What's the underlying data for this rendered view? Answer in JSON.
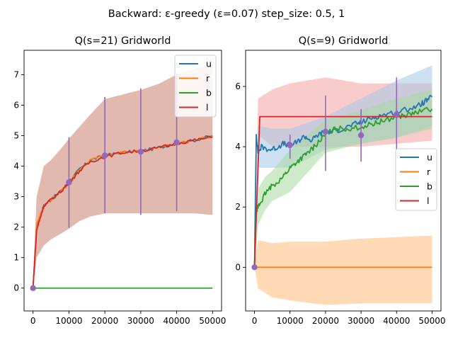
{
  "figure_title": "Backward: ε-greedy (ε=0.07) step_size: 0.5, 1",
  "colors": {
    "u": "#1f77b4",
    "r": "#ff7f0e",
    "b": "#2ca02c",
    "l": "#d62728",
    "marker": "#9467bd"
  },
  "chart_data": [
    {
      "type": "line",
      "title": "Q(s=21) Gridworld",
      "xlim": [
        -2500,
        52500
      ],
      "ylim": [
        -0.75,
        7.8
      ],
      "xticks": [
        0,
        10000,
        20000,
        30000,
        40000,
        50000
      ],
      "yticks": [
        0,
        1,
        2,
        3,
        4,
        5,
        6,
        7
      ],
      "legend_position": "top-right",
      "legend": [
        "u",
        "r",
        "b",
        "l"
      ],
      "series": [
        {
          "name": "u",
          "color": "#1f77b4",
          "x": [
            0,
            1000,
            2000,
            3000,
            5000,
            8000,
            10000,
            13000,
            16000,
            20000,
            25000,
            30000,
            35000,
            40000,
            45000,
            50000
          ],
          "y": [
            0,
            2.0,
            2.4,
            2.7,
            2.9,
            3.2,
            3.5,
            3.9,
            4.2,
            4.35,
            4.45,
            4.5,
            4.6,
            4.75,
            4.85,
            5.0
          ]
        },
        {
          "name": "r",
          "color": "#ff7f0e",
          "x": [
            0,
            1000,
            2000,
            3000,
            5000,
            8000,
            10000,
            13000,
            16000,
            20000,
            25000,
            30000,
            35000,
            40000,
            45000,
            50000
          ],
          "y": [
            0,
            2.1,
            2.4,
            2.7,
            2.9,
            3.2,
            3.45,
            3.9,
            4.2,
            4.35,
            4.45,
            4.5,
            4.6,
            4.75,
            4.85,
            5.0
          ]
        },
        {
          "name": "b",
          "color": "#2ca02c",
          "x": [
            0,
            50000
          ],
          "y": [
            0,
            0
          ]
        },
        {
          "name": "l",
          "color": "#d62728",
          "x": [
            0,
            1000,
            2000,
            3000,
            5000,
            8000,
            10000,
            13000,
            16000,
            20000,
            25000,
            30000,
            35000,
            40000,
            45000,
            50000
          ],
          "y": [
            0,
            1.9,
            2.3,
            2.7,
            2.9,
            3.2,
            3.45,
            3.85,
            4.15,
            4.3,
            4.45,
            4.5,
            4.6,
            4.75,
            4.85,
            4.95
          ]
        }
      ],
      "band": {
        "color": "#c8806c",
        "x": [
          0,
          1000,
          2000,
          3000,
          5000,
          8000,
          10000,
          13000,
          16000,
          20000,
          25000,
          30000,
          35000,
          40000,
          45000,
          50000
        ],
        "lower": [
          0,
          1.0,
          1.2,
          1.4,
          1.6,
          1.8,
          1.95,
          2.2,
          2.35,
          2.45,
          2.45,
          2.45,
          2.45,
          2.45,
          2.45,
          2.4
        ],
        "upper": [
          0.3,
          3.0,
          3.5,
          4.0,
          4.2,
          4.6,
          4.9,
          5.3,
          5.7,
          6.2,
          6.35,
          6.5,
          6.7,
          7.0,
          7.2,
          7.3
        ]
      },
      "error_markers": [
        {
          "x": 0,
          "y": 0,
          "low": 0,
          "high": 0
        },
        {
          "x": 10000,
          "y": 3.47,
          "low": 1.98,
          "high": 4.95
        },
        {
          "x": 20000,
          "y": 4.35,
          "low": 2.45,
          "high": 6.27
        },
        {
          "x": 30000,
          "y": 4.47,
          "low": 2.4,
          "high": 6.55
        },
        {
          "x": 40000,
          "y": 4.78,
          "low": 2.52,
          "high": 7.05
        }
      ]
    },
    {
      "type": "line",
      "title": "Q(s=9) Gridworld",
      "xlim": [
        -2500,
        52500
      ],
      "ylim": [
        -1.45,
        7.2
      ],
      "xticks": [
        0,
        10000,
        20000,
        30000,
        40000,
        50000
      ],
      "yticks": [
        0,
        2,
        4,
        6
      ],
      "legend_position": "center-right",
      "legend": [
        "u",
        "r",
        "b",
        "l"
      ],
      "series": [
        {
          "name": "u",
          "color": "#1f77b4",
          "x": [
            0,
            500,
            1000,
            2000,
            4000,
            6000,
            8000,
            10000,
            12000,
            14000,
            16000,
            18000,
            20000,
            22000,
            25000,
            28000,
            30000,
            33000,
            36000,
            40000,
            43000,
            46000,
            48000,
            50000
          ],
          "y": [
            0,
            4.4,
            3.8,
            4.0,
            3.9,
            3.95,
            4.1,
            4.05,
            4.15,
            4.35,
            4.2,
            4.4,
            4.5,
            4.5,
            4.6,
            4.75,
            4.8,
            4.95,
            5.05,
            5.15,
            5.25,
            5.35,
            5.5,
            5.65
          ]
        },
        {
          "name": "r",
          "color": "#ff7f0e",
          "x": [
            0,
            50000
          ],
          "y": [
            0,
            0
          ]
        },
        {
          "name": "b",
          "color": "#2ca02c",
          "x": [
            0,
            500,
            1000,
            2000,
            3000,
            5000,
            8000,
            10000,
            12000,
            14000,
            16000,
            18000,
            20000,
            23000,
            26000,
            30000,
            33000,
            36000,
            40000,
            43000,
            46000,
            50000
          ],
          "y": [
            0,
            1.9,
            2.0,
            2.2,
            2.45,
            2.7,
            3.0,
            3.3,
            3.5,
            3.7,
            3.9,
            4.15,
            4.4,
            4.6,
            4.6,
            4.65,
            4.75,
            4.85,
            5.0,
            5.05,
            5.15,
            5.25
          ]
        },
        {
          "name": "l",
          "color": "#d62728",
          "x": [
            0,
            1500,
            50000
          ],
          "y": [
            0,
            5.0,
            5.0
          ]
        }
      ],
      "bands": [
        {
          "color": "#ffbb78",
          "x": [
            0,
            1000,
            5000,
            10000,
            20000,
            30000,
            40000,
            50000
          ],
          "lower": [
            0,
            -0.7,
            -1.0,
            -1.1,
            -1.25,
            -1.2,
            -1.2,
            -1.2
          ],
          "upper": [
            0,
            0.9,
            0.8,
            0.85,
            0.85,
            0.95,
            1.0,
            1.05
          ]
        },
        {
          "color": "#f4a3a3",
          "x": [
            0,
            1000,
            5000,
            10000,
            20000,
            30000,
            40000,
            50000
          ],
          "lower": [
            0,
            4.4,
            4.0,
            4.0,
            4.0,
            4.0,
            4.1,
            4.2
          ],
          "upper": [
            0,
            5.6,
            5.9,
            6.1,
            6.3,
            6.1,
            6.1,
            6.1
          ]
        },
        {
          "color": "#a6c8e8",
          "x": [
            0,
            1000,
            5000,
            10000,
            20000,
            30000,
            40000,
            50000
          ],
          "lower": [
            0,
            3.3,
            3.3,
            3.3,
            3.9,
            4.1,
            4.3,
            4.7
          ],
          "upper": [
            0,
            4.7,
            4.6,
            4.6,
            5.0,
            5.6,
            6.2,
            6.7
          ]
        },
        {
          "color": "#a8d8a0",
          "x": [
            0,
            1000,
            3000,
            5000,
            10000,
            20000,
            30000,
            40000,
            50000
          ],
          "lower": [
            0,
            1.4,
            1.9,
            2.2,
            2.5,
            3.8,
            4.1,
            4.3,
            4.6
          ],
          "upper": [
            0,
            2.6,
            3.0,
            3.2,
            3.9,
            4.9,
            5.2,
            5.6,
            5.9
          ]
        }
      ],
      "error_markers": [
        {
          "x": 0,
          "y": 0,
          "low": 0,
          "high": 0
        },
        {
          "x": 10000,
          "y": 4.05,
          "low": 3.6,
          "high": 4.4
        },
        {
          "x": 20000,
          "y": 4.5,
          "low": 3.2,
          "high": 5.7
        },
        {
          "x": 30000,
          "y": 4.38,
          "low": 3.5,
          "high": 5.25
        },
        {
          "x": 40000,
          "y": 5.07,
          "low": 3.9,
          "high": 6.3
        }
      ]
    }
  ]
}
